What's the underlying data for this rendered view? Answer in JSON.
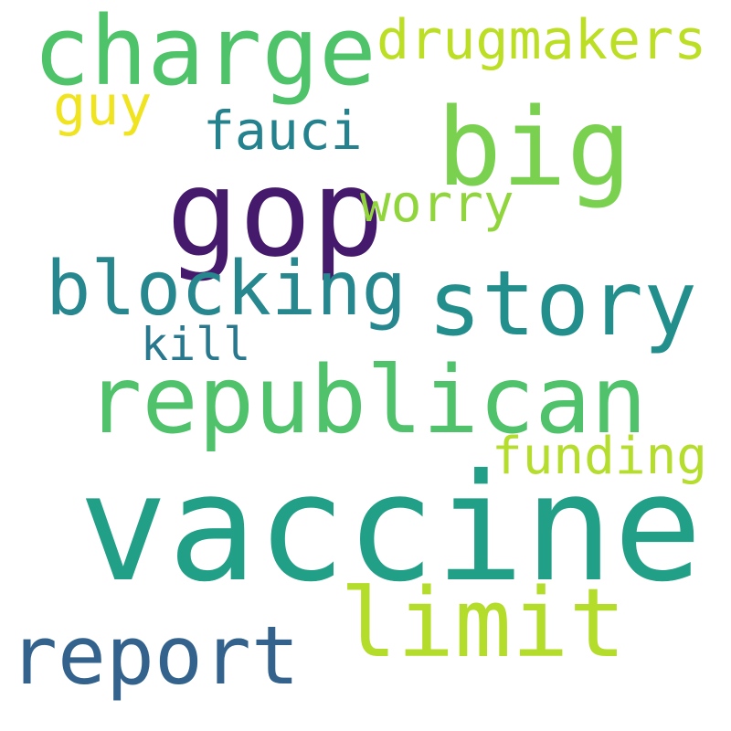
{
  "cloud": {
    "words": {
      "vaccine": {
        "text": "vaccine",
        "color": "#22a087"
      },
      "gop": {
        "text": "gop",
        "color": "#451a6c"
      },
      "republican": {
        "text": "republican",
        "color": "#4fc26b"
      },
      "story": {
        "text": "story",
        "color": "#238f8c"
      },
      "big": {
        "text": "big",
        "color": "#7ad04f"
      },
      "charge": {
        "text": "charge",
        "color": "#4fc369"
      },
      "limit": {
        "text": "limit",
        "color": "#b3dc2b"
      },
      "blocking": {
        "text": "blocking",
        "color": "#27878e"
      },
      "report": {
        "text": "report",
        "color": "#33638d"
      },
      "drugmakers": {
        "text": "drugmakers",
        "color": "#bcdf26"
      },
      "funding": {
        "text": "funding",
        "color": "#b4dd2d"
      },
      "fauci": {
        "text": "fauci",
        "color": "#24828e"
      },
      "worry": {
        "text": "worry",
        "color": "#91d53d"
      },
      "guy": {
        "text": "guy",
        "color": "#f0e320"
      },
      "kill": {
        "text": "kill",
        "color": "#2a788e"
      }
    }
  }
}
